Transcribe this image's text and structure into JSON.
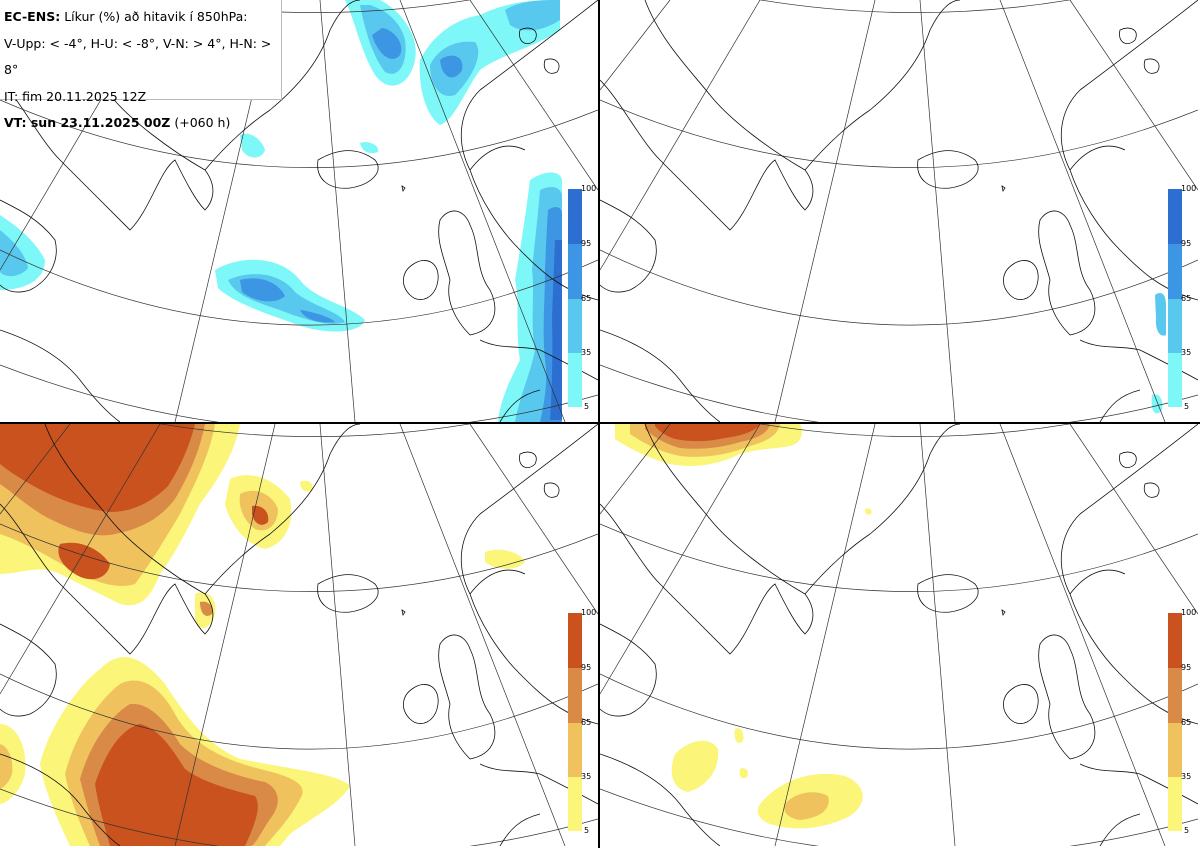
{
  "info": {
    "model": "EC-ENS:",
    "title": "Líkur (%) að hitavik í 850hPa:",
    "categories": "V-Upp: < -4°, H-U: < -8°, V-N: > 4°, H-N: > 8°",
    "init_time": "IT: fim 20.11.2025 12Z",
    "valid_label": "VT: sun 23.11.2025 00Z",
    "lead_time": "(+060 h)"
  },
  "panels": [
    {
      "id": "V-Upp",
      "meaning": "< -4°",
      "palette": "cold"
    },
    {
      "id": "H-U",
      "meaning": "< -8°",
      "palette": "cold"
    },
    {
      "id": "V-N",
      "meaning": "> 4°",
      "palette": "warm"
    },
    {
      "id": "H-N",
      "meaning": "> 8°",
      "palette": "warm"
    }
  ],
  "colorbar": {
    "labels": [
      "100",
      "95",
      "65",
      "35",
      "5"
    ],
    "cold_colors": [
      "#2c6fd0",
      "#3d96e3",
      "#58c8ee",
      "#7ef7f9"
    ],
    "warm_colors": [
      "#c9521e",
      "#da8a47",
      "#efc25d",
      "#fbf57a"
    ]
  }
}
